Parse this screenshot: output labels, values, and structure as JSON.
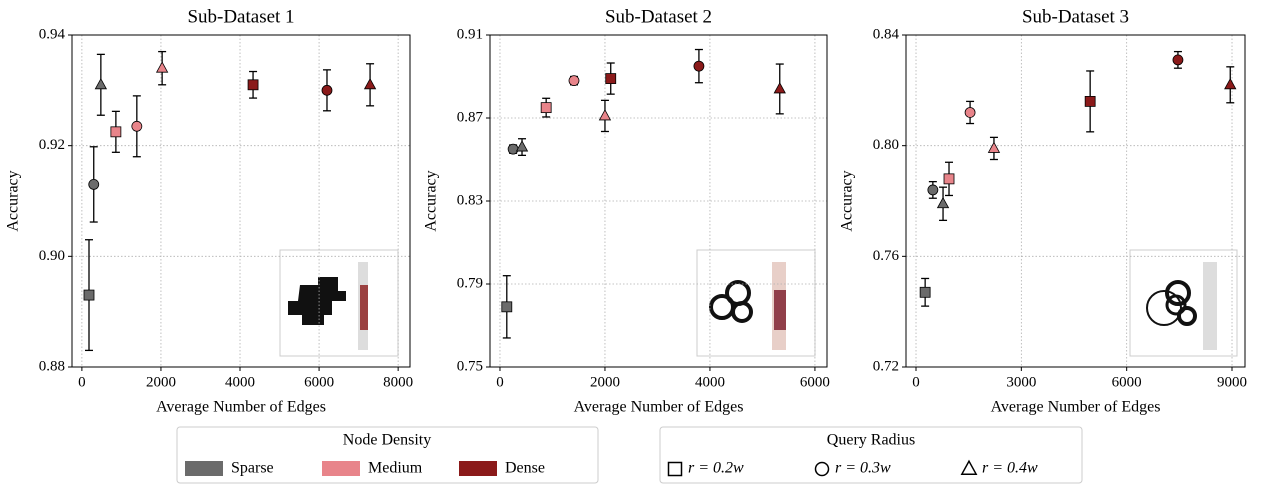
{
  "chart_data": [
    {
      "type": "scatter",
      "title": "Sub-Dataset 1",
      "x_label": "Average Number of Edges",
      "y_label": "Accuracy",
      "xlim": [
        -250,
        8300
      ],
      "ylim": [
        0.88,
        0.94
      ],
      "xticks": [
        0,
        2000,
        4000,
        6000,
        8000
      ],
      "yticks": [
        0.88,
        {
          "value": 0.9,
          "label": "0.90"
        },
        0.92,
        0.94
      ],
      "grid": true,
      "series": [
        {
          "name": "Sparse",
          "color": "#6b6b6b",
          "x": [
            180,
            300,
            480
          ],
          "values": [
            0.893,
            0.913,
            0.931
          ],
          "errors": [
            0.01,
            0.0068,
            0.0055
          ]
        },
        {
          "name": "Medium",
          "color": "#e8848a",
          "x": [
            860,
            1390,
            2030
          ],
          "values": [
            0.9225,
            0.9235,
            0.934
          ],
          "errors": [
            0.0037,
            0.0055,
            0.003
          ]
        },
        {
          "name": "Dense",
          "color": "#8b1a1a",
          "x": [
            4330,
            6200,
            7290
          ],
          "values": [
            0.931,
            0.93,
            0.931
          ],
          "errors": [
            0.0024,
            0.0037,
            0.0038
          ]
        }
      ]
    },
    {
      "type": "scatter",
      "title": "Sub-Dataset 2",
      "x_label": "Average Number of Edges",
      "y_label": "Accuracy",
      "xlim": [
        -190,
        6230
      ],
      "ylim": [
        0.75,
        0.91
      ],
      "xticks": [
        0,
        2000,
        4000,
        6000
      ],
      "yticks": [
        0.75,
        0.79,
        0.83,
        0.87,
        0.91
      ],
      "grid": true,
      "series": [
        {
          "name": "Sparse",
          "color": "#6b6b6b",
          "x": [
            130,
            250,
            420
          ],
          "values": [
            0.779,
            0.855,
            0.856
          ],
          "errors": [
            0.015,
            0.002,
            0.004
          ]
        },
        {
          "name": "Medium",
          "color": "#e8848a",
          "x": [
            880,
            1410,
            2000
          ],
          "values": [
            0.875,
            0.888,
            0.871
          ],
          "errors": [
            0.0045,
            0.002,
            0.0075
          ]
        },
        {
          "name": "Dense",
          "color": "#8b1a1a",
          "x": [
            2110,
            3790,
            5330
          ],
          "values": [
            0.889,
            0.895,
            0.884
          ],
          "errors": [
            0.0075,
            0.008,
            0.012
          ]
        }
      ]
    },
    {
      "type": "scatter",
      "title": "Sub-Dataset 3",
      "x_label": "Average Number of Edges",
      "y_label": "Accuracy",
      "xlim": [
        -285,
        9370
      ],
      "ylim": [
        0.72,
        0.84
      ],
      "xticks": [
        0,
        3000,
        6000,
        9000
      ],
      "yticks": [
        0.72,
        0.76,
        {
          "value": 0.8,
          "label": "0.80"
        },
        0.84
      ],
      "grid": true,
      "series": [
        {
          "name": "Sparse",
          "color": "#6b6b6b",
          "x": [
            260,
            480,
            770
          ],
          "values": [
            0.747,
            0.784,
            0.779
          ],
          "errors": [
            0.005,
            0.003,
            0.006
          ]
        },
        {
          "name": "Medium",
          "color": "#e8848a",
          "x": [
            940,
            1540,
            2220
          ],
          "values": [
            0.788,
            0.812,
            0.799
          ],
          "errors": [
            0.006,
            0.004,
            0.004
          ]
        },
        {
          "name": "Dense",
          "color": "#8b1a1a",
          "x": [
            4960,
            7460,
            8950
          ],
          "values": [
            0.816,
            0.831,
            0.822
          ],
          "errors": [
            0.011,
            0.003,
            0.0065
          ]
        }
      ]
    }
  ],
  "legend": {
    "density_title": "Node Density",
    "radius_title": "Query Radius",
    "radius_labels": [
      "r = 0.2w",
      "r = 0.3w",
      "r = 0.4w"
    ],
    "radius_markers": [
      "square",
      "circle",
      "triangle"
    ]
  }
}
